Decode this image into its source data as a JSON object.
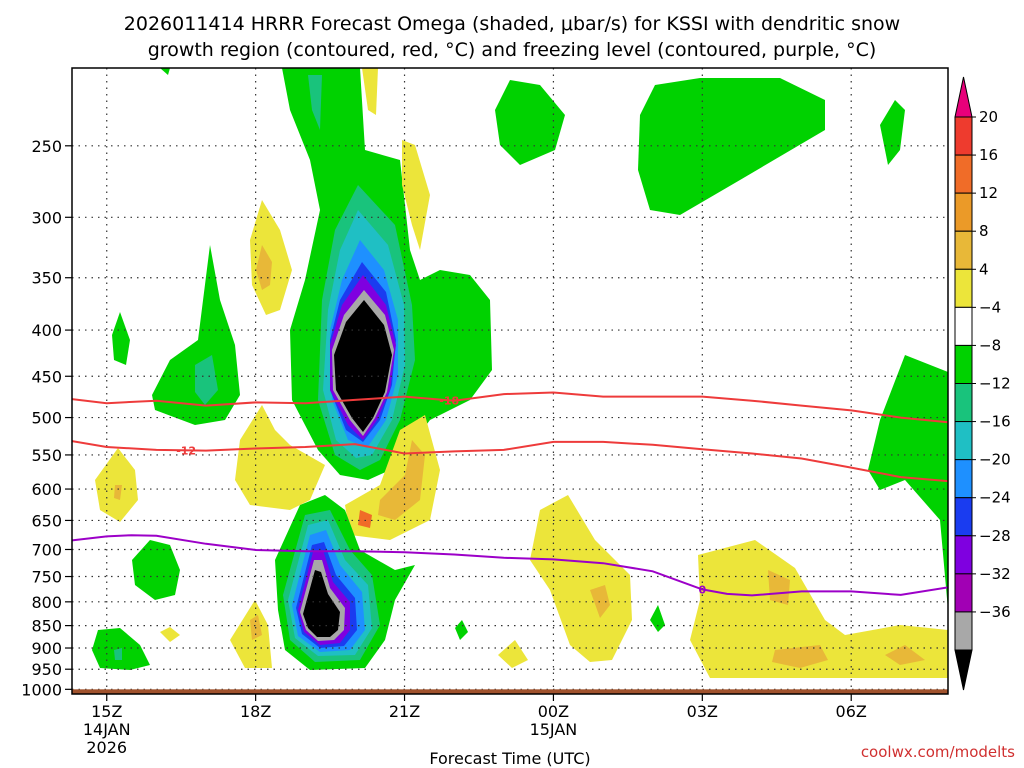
{
  "title_line1": "2026011414 HRRR Forecast Omega (shaded, μbar/s) for KSSI with dendritic snow",
  "title_line2": "growth region (contoured, red, °C) and freezing level (contoured, purple, °C)",
  "credit": "coolwx.com/modelts",
  "chart_data": {
    "type": "contour",
    "title": "2026011414 HRRR Forecast Omega (shaded, μbar/s) for KSSI with dendritic snow growth region (contoured, red, °C) and freezing level (contoured, purple, °C)",
    "xlabel": "Forecast Time (UTC)",
    "ylabel": "",
    "x_unit": "hours from 14JAN 14Z",
    "xlim": [
      14.3,
      31.95
    ],
    "y_unit": "hPa",
    "ylim": [
      1012,
      205
    ],
    "x_ticks": [
      {
        "x": 15,
        "label": "15Z",
        "sub1": "14JAN",
        "sub2": "2026"
      },
      {
        "x": 18,
        "label": "18Z",
        "sub1": "",
        "sub2": ""
      },
      {
        "x": 21,
        "label": "21Z",
        "sub1": "",
        "sub2": ""
      },
      {
        "x": 24,
        "label": "00Z",
        "sub1": "15JAN",
        "sub2": ""
      },
      {
        "x": 27,
        "label": "03Z",
        "sub1": "",
        "sub2": ""
      },
      {
        "x": 30,
        "label": "06Z",
        "sub1": "",
        "sub2": ""
      }
    ],
    "y_ticks": [
      250,
      300,
      350,
      400,
      450,
      500,
      550,
      600,
      650,
      700,
      750,
      800,
      850,
      900,
      950,
      1000
    ],
    "colorbar": {
      "label_values": [
        "20",
        "16",
        "12",
        "8",
        "4",
        "−4",
        "−8",
        "−12",
        "−16",
        "−20",
        "−24",
        "−28",
        "−32",
        "−36"
      ],
      "bins": [
        {
          "color": "#e8007a"
        },
        {
          "color": "#ee3b2e"
        },
        {
          "color": "#f06c28"
        },
        {
          "color": "#eb9a28"
        },
        {
          "color": "#e8b838"
        },
        {
          "color": "#ece53a"
        },
        {
          "color": "#ffffff"
        },
        {
          "color": "#00d200"
        },
        {
          "color": "#19c37c"
        },
        {
          "color": "#1fbfc4"
        },
        {
          "color": "#1e90ff"
        },
        {
          "color": "#1a3cf0"
        },
        {
          "color": "#7f00e0"
        },
        {
          "color": "#a100b4"
        },
        {
          "color": "#a8a8a8"
        },
        {
          "color": "#000000"
        }
      ]
    },
    "ground": {
      "pressure": 1000,
      "color": "#a0522d"
    },
    "temperature_contours": [
      {
        "label": "-18",
        "color": "#ee3b3b",
        "x": [
          14.3,
          15.0,
          16.0,
          17.0,
          18.0,
          19.0,
          20.0,
          21.0,
          22.0,
          23.0,
          24.0,
          25.0,
          26.0,
          27.0,
          28.0,
          29.0,
          30.0,
          31.0,
          31.95
        ],
        "p": [
          477,
          482,
          479,
          485,
          481,
          482,
          478,
          474,
          479,
          471,
          469,
          474,
          474,
          474,
          479,
          485,
          491,
          500,
          506
        ],
        "label_x": 21.9
      },
      {
        "label": "-12",
        "color": "#ee3b3b",
        "x": [
          14.3,
          15.0,
          16.0,
          17.0,
          18.0,
          19.0,
          20.0,
          21.0,
          22.0,
          23.0,
          24.0,
          25.0,
          26.0,
          27.0,
          28.0,
          29.0,
          30.0,
          31.0,
          31.95
        ],
        "p": [
          531,
          539,
          543,
          544,
          541,
          539,
          535,
          548,
          545,
          543,
          532,
          532,
          536,
          542,
          548,
          555,
          568,
          582,
          588
        ],
        "label_x": 16.6
      },
      {
        "label": "0",
        "color": "#9c00c8",
        "x": [
          14.3,
          15.0,
          15.5,
          16.0,
          17.0,
          18.0,
          19.0,
          20.0,
          21.0,
          22.0,
          23.0,
          24.0,
          25.0,
          26.0,
          27.0,
          27.5,
          28.0,
          29.0,
          30.0,
          31.0,
          31.95
        ],
        "p": [
          684,
          677,
          675,
          676,
          690,
          701,
          703,
          703,
          705,
          709,
          715,
          718,
          725,
          740,
          775,
          784,
          787,
          779,
          779,
          786,
          771
        ],
        "label_x": 27.0
      }
    ],
    "cell_labels": [
      {
        "x": 20.0,
        "p": 460,
        "value": "−36 (min, upper)"
      },
      {
        "x": 19.1,
        "p": 830,
        "value": "−36 (min, lower)"
      }
    ]
  }
}
